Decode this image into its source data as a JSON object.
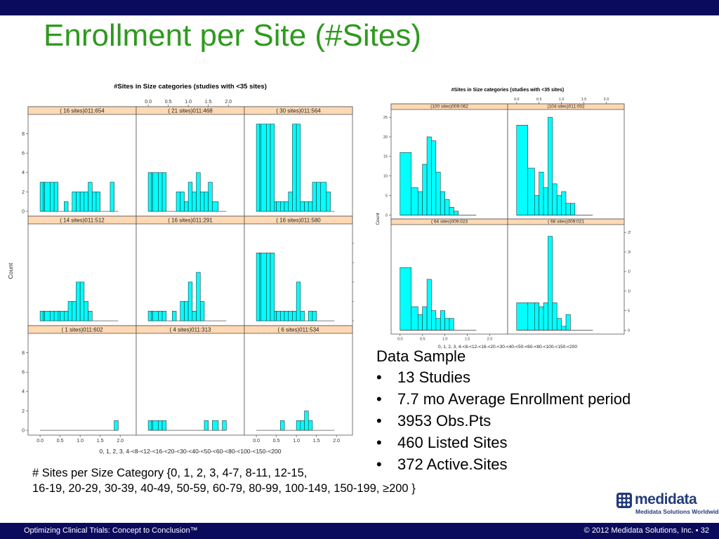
{
  "slide": {
    "title": "Enrollment per Site (#Sites)",
    "footer_left": "Optimizing Clinical Trials: Concept to Conclusion™",
    "footer_right": "© 2012 Medidata Solutions, Inc. ▪ 32",
    "data_sample": {
      "heading": "Data Sample",
      "bullet_symbol": "•",
      "items": [
        "13 Studies",
        "7.7 mo Average Enrollment period",
        "3953 Obs.Pts",
        "460 Listed Sites",
        "372 Active.Sites"
      ]
    },
    "caption_lines": [
      "# Sites per Size Category {0, 1, 2, 3, 4-7, 8-11, 12-15,",
      "16-19, 20-29, 30-39, 40-49, 50-59, 60-79, 80-99, 100-149, 150-199, ≥200 }"
    ],
    "logo": {
      "name": "medidata",
      "tagline": "Medidata Solutions Worldwide",
      "color": "#243c7a"
    }
  },
  "colors": {
    "bar_fill": "#00ffff",
    "strip_fill": "#ffd9b3",
    "title_green": "#2e9a1e",
    "bar_navy": "#0b0b5e"
  },
  "chart_data": [
    {
      "type": "bar",
      "title": "#Sites in Size categories (studies with <35 sites)",
      "xlabel": "0, 1, 2, 3, 4-<8-<12-<16-<20-<30-<40-<50-<60-<80-<100-<150-<200",
      "ylabel": "Count",
      "x_tick_labels": [
        "0.0",
        "0.5",
        "1.0",
        "1.5",
        "2.0"
      ],
      "xlim": [
        -0.3,
        2.4
      ],
      "y_ticks_left": [
        0,
        2,
        4,
        6,
        8
      ],
      "y_ticks_right": [
        0,
        2,
        4,
        6,
        8
      ],
      "ylim": [
        -0.5,
        10
      ],
      "bin_edges": [
        0,
        0.08,
        0.115,
        0.25,
        0.35,
        0.45,
        0.5,
        0.6,
        0.7,
        0.8,
        0.9,
        1.0,
        1.1,
        1.2,
        1.3,
        1.4,
        1.5,
        1.6,
        1.75,
        1.85,
        1.95
      ],
      "rows": 3,
      "cols": 3,
      "panels": [
        {
          "label": "( 16 sites)011:654",
          "values": [
            3,
            3,
            3,
            3,
            3,
            0,
            0,
            1,
            0,
            2,
            2,
            2,
            2,
            3,
            2,
            2,
            0,
            0,
            3,
            0
          ]
        },
        {
          "label": "( 21 sites)011:468",
          "values": [
            4,
            4,
            4,
            4,
            4,
            0,
            0,
            0,
            2,
            2,
            1,
            3,
            2,
            4,
            2,
            2,
            3,
            1,
            0,
            0
          ]
        },
        {
          "label": "( 30 sites)011:564",
          "values": [
            9,
            9,
            9,
            9,
            9,
            1,
            1,
            1,
            1,
            2,
            9,
            9,
            1,
            1,
            1,
            3,
            3,
            3,
            2,
            0
          ]
        },
        {
          "label": "( 14 sites)011:512",
          "values": [
            1,
            1,
            1,
            1,
            1,
            1,
            1,
            1,
            2,
            2,
            4,
            4,
            2,
            1,
            0,
            0,
            0,
            0,
            0,
            0
          ]
        },
        {
          "label": "( 16 sites)011:291",
          "values": [
            1,
            1,
            1,
            1,
            1,
            0,
            0,
            1,
            0,
            2,
            2,
            4,
            1,
            5,
            2,
            0,
            0,
            0,
            0,
            0
          ]
        },
        {
          "label": "( 16 sites)011:580",
          "values": [
            7,
            7,
            7,
            7,
            7,
            1,
            1,
            1,
            1,
            1,
            1,
            4,
            1,
            0,
            1,
            1,
            0,
            0,
            0,
            0
          ]
        },
        {
          "label": "( 1 sites)011:602",
          "values": [
            0,
            0,
            0,
            0,
            0,
            0,
            0,
            0,
            0,
            0,
            0,
            0,
            0,
            0,
            0,
            0,
            0,
            0,
            0,
            1
          ]
        },
        {
          "label": "( 4 sites)011:313",
          "values": [
            1,
            1,
            1,
            1,
            1,
            0,
            0,
            0,
            0,
            0,
            0,
            0,
            0,
            0,
            0,
            1,
            0,
            1,
            0,
            1
          ]
        },
        {
          "label": "( 6 sites)011:534",
          "values": [
            0,
            0,
            0,
            0,
            0,
            0,
            0,
            1,
            0,
            0,
            0,
            1,
            1,
            2,
            1,
            0,
            0,
            0,
            0,
            0
          ]
        }
      ]
    },
    {
      "type": "bar",
      "title": "#Sites in Size categories (studies with <35 sites)",
      "xlabel": "0, 1, 2, 3, 4-<8-<12-<16-<20-<30-<40-<50-<60-<80-<100-<150-<200",
      "ylabel": "Count",
      "x_tick_labels": [
        "0.0",
        "0.5",
        "1.0",
        "1.5",
        "2.0"
      ],
      "xlim": [
        -0.2,
        2.4
      ],
      "y_ticks_left": [
        0,
        5,
        10,
        15,
        20,
        25
      ],
      "y_ticks_right": [
        0,
        5,
        10,
        15,
        20,
        25
      ],
      "ylim": [
        -1,
        27
      ],
      "bin_edges": [
        0,
        0.25,
        0.4,
        0.5,
        0.6,
        0.7,
        0.8,
        0.9,
        1.0,
        1.1,
        1.2,
        1.3,
        1.4,
        1.5,
        1.6,
        1.7
      ],
      "rows": 2,
      "cols": 2,
      "panels": [
        {
          "label": "(100 sites)009:062",
          "values": [
            16,
            7,
            6,
            13,
            20,
            19,
            11,
            6,
            4,
            2,
            1,
            0,
            0,
            0,
            0
          ]
        },
        {
          "label": "(104 sites)011:002",
          "values": [
            23,
            12,
            5,
            11,
            7,
            25,
            8,
            5,
            6,
            3,
            3,
            0,
            0,
            0,
            0
          ]
        },
        {
          "label": "( 64 sites)009:023",
          "values": [
            16,
            6,
            4,
            6,
            13,
            5,
            3,
            5,
            3,
            3,
            0,
            0,
            0,
            0,
            0
          ]
        },
        {
          "label": "( 68 sites)009:021",
          "values": [
            7,
            7,
            7,
            6,
            7,
            24,
            7,
            3,
            1,
            4,
            0,
            0,
            0,
            0,
            0
          ]
        }
      ]
    }
  ]
}
